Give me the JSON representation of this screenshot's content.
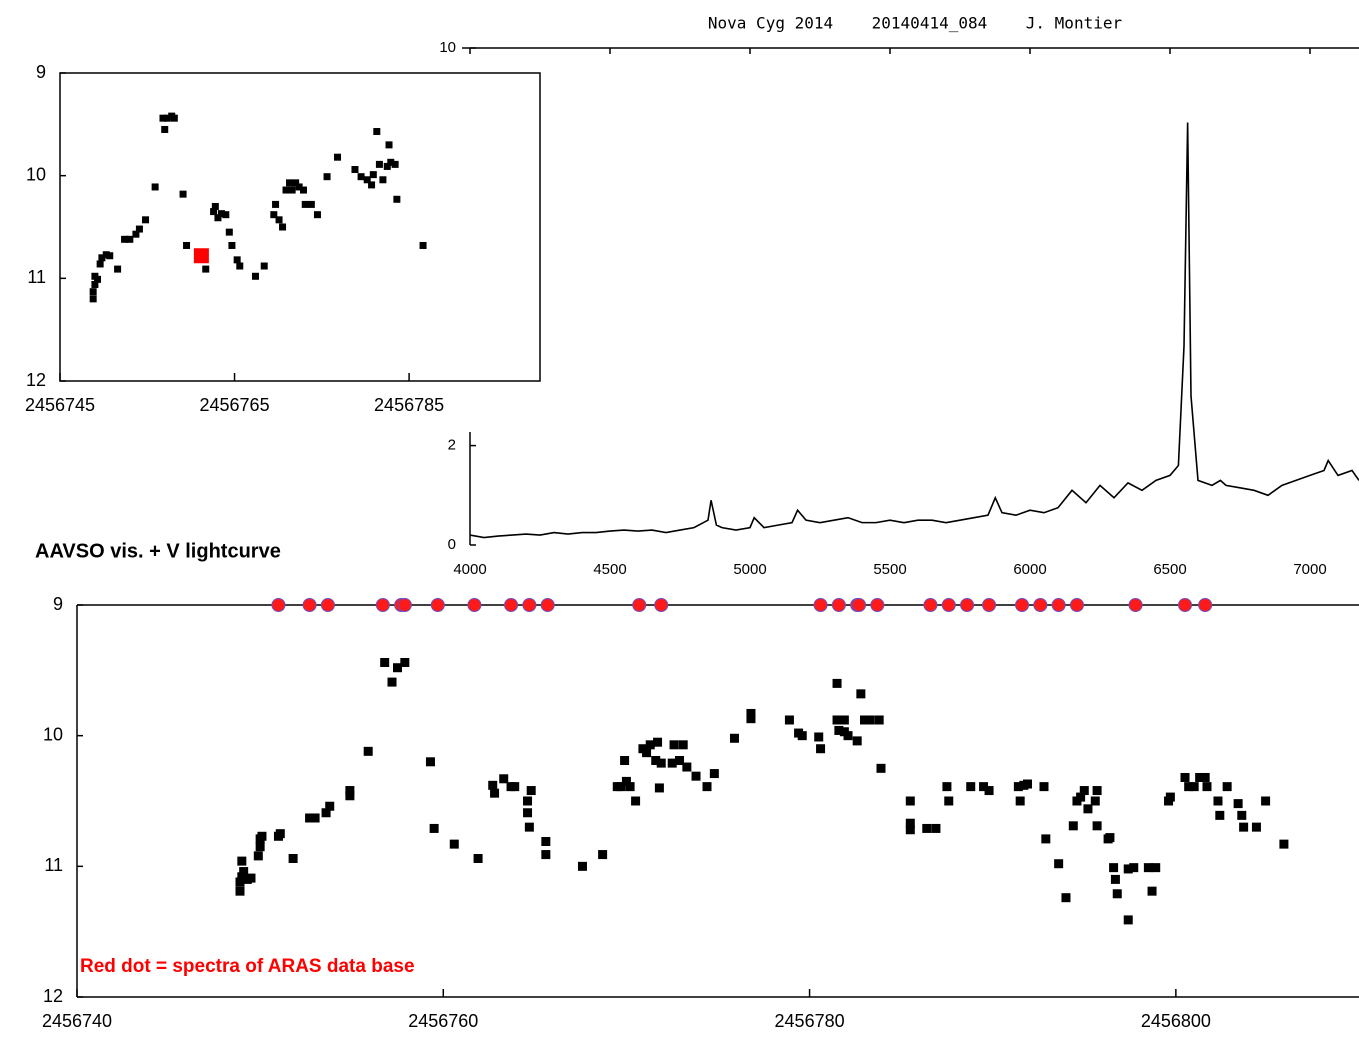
{
  "chart_data": [
    {
      "type": "scatter",
      "xlim": [
        2456745,
        2456800
      ],
      "ylim": [
        12,
        9
      ],
      "xticks": [
        2456745,
        2456765,
        2456785
      ],
      "yticks": [
        9,
        10,
        11,
        12
      ],
      "series": [
        {
          "color": "#000000",
          "marker": "square",
          "marker_size": 7,
          "x": [
            2456748.8,
            2456748.8,
            2456749.0,
            2456749.0,
            2456749.3,
            2456749.6,
            2456749.8,
            2456750.3,
            2456750.7,
            2456751.6,
            2456752.4,
            2456753.0,
            2456753.7,
            2456754.1,
            2456754.8,
            2456755.9,
            2456756.8,
            2456757.0,
            2456757.3,
            2456757.8,
            2456758.1,
            2456759.1,
            2456759.5,
            2456761.7,
            2456762.6,
            2456762.8,
            2456763.1,
            2456763.5,
            2456764.0,
            2456764.4,
            2456764.7,
            2456765.3,
            2456765.6,
            2456767.4,
            2456768.4,
            2456769.5,
            2456769.7,
            2456770.1,
            2456770.5,
            2456770.9,
            2456771.3,
            2456771.6,
            2456772.0,
            2456772.4,
            2456772.9,
            2456773.1,
            2456773.8,
            2456774.5,
            2456775.6,
            2456776.8,
            2456778.8,
            2456779.5,
            2456780.2,
            2456780.7,
            2456780.9,
            2456781.3,
            2456781.6,
            2456782.0,
            2456782.5,
            2456782.7,
            2456782.9,
            2456783.4,
            2456783.6,
            2456786.6
          ],
          "values": [
            11.2,
            11.13,
            11.06,
            10.98,
            11.01,
            10.86,
            10.8,
            10.77,
            10.78,
            10.91,
            10.62,
            10.62,
            10.57,
            10.52,
            10.43,
            10.11,
            9.44,
            9.55,
            9.44,
            9.42,
            9.44,
            10.18,
            10.68,
            10.91,
            10.35,
            10.3,
            10.41,
            10.37,
            10.38,
            10.55,
            10.68,
            10.82,
            10.88,
            10.98,
            10.88,
            10.38,
            10.28,
            10.43,
            10.5,
            10.14,
            10.07,
            10.14,
            10.07,
            10.11,
            10.14,
            10.28,
            10.28,
            10.38,
            10.01,
            9.82,
            9.94,
            10.01,
            10.04,
            10.09,
            9.99,
            9.57,
            9.89,
            10.04,
            9.91,
            9.7,
            9.87,
            9.89,
            10.23,
            10.68
          ]
        },
        {
          "color": "#ff0000",
          "marker": "square",
          "marker_size": 15,
          "x": [
            2456761.2
          ],
          "values": [
            10.78
          ]
        }
      ]
    },
    {
      "type": "line",
      "title": "Nova Cyg 2014    20140414_084    J. Montier",
      "xlim": [
        4000,
        7175
      ],
      "ylim": [
        0,
        10
      ],
      "xticks": [
        4000,
        4500,
        5000,
        5500,
        6000,
        6500,
        7000
      ],
      "yticks": [
        0,
        2,
        10
      ],
      "series": [
        {
          "color": "#000000",
          "x": [
            4000,
            4050,
            4100,
            4150,
            4200,
            4250,
            4300,
            4350,
            4400,
            4450,
            4500,
            4550,
            4600,
            4650,
            4700,
            4750,
            4800,
            4850,
            4861,
            4880,
            4900,
            4950,
            5000,
            5015,
            5050,
            5100,
            5150,
            5170,
            5200,
            5250,
            5300,
            5350,
            5400,
            5450,
            5500,
            5550,
            5600,
            5650,
            5700,
            5750,
            5800,
            5850,
            5876,
            5900,
            5950,
            6000,
            6050,
            6100,
            6150,
            6200,
            6250,
            6300,
            6350,
            6400,
            6450,
            6500,
            6530,
            6550,
            6563,
            6575,
            6600,
            6650,
            6680,
            6700,
            6750,
            6800,
            6850,
            6900,
            6950,
            7000,
            7050,
            7065,
            7100,
            7150,
            7175
          ],
          "values": [
            0.2,
            0.15,
            0.18,
            0.2,
            0.22,
            0.2,
            0.25,
            0.22,
            0.25,
            0.25,
            0.28,
            0.3,
            0.28,
            0.3,
            0.25,
            0.3,
            0.35,
            0.5,
            0.9,
            0.4,
            0.35,
            0.3,
            0.35,
            0.55,
            0.35,
            0.4,
            0.45,
            0.7,
            0.5,
            0.45,
            0.5,
            0.55,
            0.45,
            0.45,
            0.5,
            0.45,
            0.5,
            0.5,
            0.45,
            0.5,
            0.55,
            0.6,
            0.95,
            0.65,
            0.6,
            0.7,
            0.65,
            0.75,
            1.1,
            0.85,
            1.2,
            0.95,
            1.25,
            1.1,
            1.3,
            1.4,
            1.6,
            4.0,
            8.5,
            3.0,
            1.3,
            1.2,
            1.3,
            1.2,
            1.15,
            1.1,
            1.0,
            1.2,
            1.3,
            1.4,
            1.5,
            1.7,
            1.4,
            1.5,
            1.3
          ]
        }
      ]
    },
    {
      "type": "scatter",
      "title": "AAVSO vis. + V lightcurve",
      "annotation": "Red dot = spectra of ARAS data base",
      "annotation_color": "#ff0000",
      "xlim": [
        2456740,
        2456810
      ],
      "ylim": [
        12,
        9
      ],
      "xticks": [
        2456740,
        2456760,
        2456780,
        2456800
      ],
      "yticks": [
        9,
        10,
        11,
        12
      ],
      "series": [
        {
          "color": "#000000",
          "marker": "square",
          "marker_size": 9,
          "x": [
            2456748.9,
            2456748.9,
            2456749.0,
            2456749.1,
            2456749.3,
            2456749.5,
            2456749.0,
            2456749.9,
            2456750.0,
            2456750.0,
            2456750.1,
            2456751.0,
            2456751.1,
            2456751.8,
            2456752.7,
            2456753.0,
            2456753.6,
            2456753.8,
            2456754.9,
            2456754.9,
            2456755.9,
            2456756.8,
            2456757.2,
            2456757.5,
            2456757.9,
            2456759.3,
            2456759.5,
            2456760.6,
            2456761.9,
            2456762.7,
            2456762.8,
            2456763.3,
            2456763.7,
            2456763.9,
            2456764.6,
            2456764.6,
            2456764.7,
            2456764.8,
            2456765.6,
            2456765.6,
            2456767.6,
            2456768.7,
            2456769.5,
            2456769.7,
            2456769.9,
            2456770.0,
            2456770.2,
            2456770.5,
            2456770.9,
            2456771.1,
            2456771.3,
            2456771.6,
            2456771.7,
            2456771.8,
            2456771.9,
            2456772.5,
            2456772.6,
            2456772.9,
            2456773.1,
            2456773.3,
            2456773.8,
            2456774.4,
            2456774.8,
            2456775.9,
            2456776.8,
            2456776.8,
            2456778.9,
            2456779.4,
            2456779.6,
            2456780.5,
            2456780.6,
            2456781.5,
            2456781.5,
            2456781.6,
            2456781.9,
            2456781.9,
            2456782.1,
            2456782.6,
            2456782.8,
            2456783.0,
            2456783.3,
            2456783.8,
            2456783.9,
            2456785.5,
            2456785.5,
            2456785.5,
            2456786.4,
            2456786.9,
            2456787.5,
            2456787.6,
            2456788.8,
            2456789.5,
            2456789.8,
            2456791.4,
            2456791.5,
            2456791.7,
            2456791.9,
            2456792.8,
            2456792.9,
            2456793.6,
            2456794.0,
            2456794.4,
            2456794.6,
            2456794.8,
            2456795.0,
            2456795.2,
            2456795.6,
            2456795.7,
            2456795.7,
            2456796.3,
            2456796.4,
            2456796.6,
            2456796.7,
            2456796.8,
            2456797.4,
            2456797.4,
            2456797.7,
            2456798.5,
            2456798.7,
            2456798.9,
            2456799.6,
            2456799.7,
            2456800.5,
            2456800.7,
            2456801.0,
            2456801.3,
            2456801.6,
            2456801.7,
            2456802.3,
            2456802.4,
            2456802.8,
            2456803.4,
            2456803.6,
            2456803.7,
            2456804.4,
            2456804.9,
            2456805.9
          ],
          "values": [
            11.19,
            11.12,
            11.08,
            11.04,
            11.1,
            11.09,
            10.96,
            10.92,
            10.85,
            10.79,
            10.77,
            10.77,
            10.75,
            10.94,
            10.63,
            10.63,
            10.59,
            10.54,
            10.46,
            10.42,
            10.12,
            9.44,
            9.59,
            9.48,
            9.44,
            10.2,
            10.71,
            10.83,
            10.94,
            10.38,
            10.44,
            10.33,
            10.39,
            10.39,
            10.5,
            10.59,
            10.7,
            10.42,
            10.81,
            10.91,
            11.0,
            10.91,
            10.39,
            10.39,
            10.19,
            10.35,
            10.39,
            10.5,
            10.1,
            10.13,
            10.07,
            10.19,
            10.05,
            10.4,
            10.21,
            10.21,
            10.07,
            10.19,
            10.07,
            10.24,
            10.31,
            10.39,
            10.29,
            10.02,
            9.83,
            9.87,
            9.88,
            9.98,
            10.0,
            10.01,
            10.1,
            9.6,
            9.88,
            9.96,
            9.97,
            9.88,
            10.0,
            10.04,
            9.68,
            9.88,
            9.88,
            9.88,
            10.25,
            10.5,
            10.67,
            10.72,
            10.71,
            10.71,
            10.39,
            10.5,
            10.39,
            10.39,
            10.42,
            10.39,
            10.5,
            10.38,
            10.37,
            10.39,
            10.79,
            10.98,
            11.24,
            10.69,
            10.5,
            10.47,
            10.42,
            10.56,
            10.5,
            10.42,
            10.69,
            10.79,
            10.78,
            11.01,
            11.1,
            11.21,
            11.41,
            11.02,
            11.01,
            11.01,
            11.19,
            11.01,
            10.5,
            10.47,
            10.32,
            10.39,
            10.39,
            10.32,
            10.32,
            10.39,
            10.5,
            10.61,
            10.39,
            10.52,
            10.61,
            10.7,
            10.7,
            10.5,
            10.83
          ]
        },
        {
          "color": "#ff1a1a",
          "edgecolor": "#6a4fc4",
          "marker": "circle",
          "marker_size": 13,
          "x": [
            2456751.0,
            2456752.7,
            2456753.7,
            2456756.7,
            2456757.7,
            2456757.9,
            2456759.7,
            2456761.7,
            2456763.7,
            2456764.7,
            2456765.7,
            2456770.7,
            2456771.9,
            2456780.6,
            2456781.6,
            2456782.6,
            2456782.7,
            2456783.7,
            2456786.6,
            2456787.6,
            2456788.6,
            2456789.8,
            2456791.6,
            2456792.6,
            2456793.6,
            2456794.6,
            2456797.8,
            2456800.5,
            2456801.6
          ],
          "values": [
            9,
            9,
            9,
            9,
            9,
            9,
            9,
            9,
            9,
            9,
            9,
            9,
            9,
            9,
            9,
            9,
            9,
            9,
            9,
            9,
            9,
            9,
            9,
            9,
            9,
            9,
            9,
            9,
            9
          ]
        }
      ]
    }
  ]
}
